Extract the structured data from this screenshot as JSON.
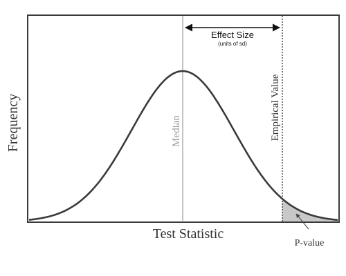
{
  "labels": {
    "y_axis": "Frequency",
    "x_axis": "Test Statistic",
    "median": "Median",
    "empirical_value": "Empirical Value",
    "effect_size": "Effect Size",
    "effect_size_units": "(units of sd)",
    "p_value": "P-value"
  },
  "colors": {
    "curve": "#3a3a3a",
    "frame": "#3a3a3a",
    "median_line": "#9a9a9a",
    "median_text": "#9a9a9a",
    "shaded_tail": "#c8c8c8",
    "text": "#333333"
  }
}
